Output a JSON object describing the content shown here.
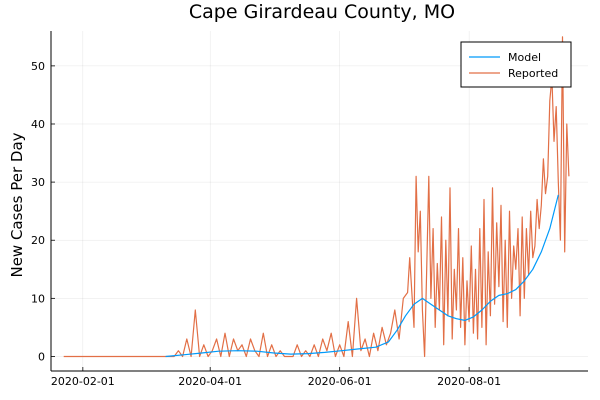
{
  "chart_data": {
    "type": "line",
    "title": "Cape Girardeau County, MO",
    "xlabel": "",
    "ylabel": "New Cases Per Day",
    "x_type": "date",
    "xlim": [
      "2020-01-17",
      "2020-09-26"
    ],
    "ylim": [
      -2.5,
      56
    ],
    "x_ticks": [
      "2020-02-01",
      "2020-04-01",
      "2020-06-01",
      "2020-08-01"
    ],
    "y_ticks": [
      0,
      10,
      20,
      30,
      40,
      50
    ],
    "grid": true,
    "legend": "top-right",
    "series": [
      {
        "name": "Model",
        "color": "#009AFA",
        "points": [
          [
            "2020-03-11",
            0
          ],
          [
            "2020-03-20",
            0.3
          ],
          [
            "2020-03-28",
            0.6
          ],
          [
            "2020-04-05",
            0.9
          ],
          [
            "2020-04-14",
            1.0
          ],
          [
            "2020-04-23",
            0.9
          ],
          [
            "2020-05-01",
            0.6
          ],
          [
            "2020-05-09",
            0.4
          ],
          [
            "2020-05-17",
            0.5
          ],
          [
            "2020-05-25",
            0.7
          ],
          [
            "2020-06-02",
            1.0
          ],
          [
            "2020-06-10",
            1.3
          ],
          [
            "2020-06-18",
            1.6
          ],
          [
            "2020-06-24",
            2.5
          ],
          [
            "2020-06-28",
            4.5
          ],
          [
            "2020-07-02",
            7.0
          ],
          [
            "2020-07-06",
            9.0
          ],
          [
            "2020-07-10",
            10.0
          ],
          [
            "2020-07-14",
            9.0
          ],
          [
            "2020-07-18",
            8.0
          ],
          [
            "2020-07-22",
            7.0
          ],
          [
            "2020-07-26",
            6.5
          ],
          [
            "2020-07-30",
            6.2
          ],
          [
            "2020-08-03",
            6.8
          ],
          [
            "2020-08-07",
            8.0
          ],
          [
            "2020-08-11",
            9.5
          ],
          [
            "2020-08-15",
            10.5
          ],
          [
            "2020-08-19",
            10.8
          ],
          [
            "2020-08-23",
            11.5
          ],
          [
            "2020-08-27",
            13.0
          ],
          [
            "2020-08-31",
            15.0
          ],
          [
            "2020-09-04",
            18.0
          ],
          [
            "2020-09-08",
            22.0
          ],
          [
            "2020-09-12",
            27.8
          ]
        ]
      },
      {
        "name": "Reported",
        "color": "#E26F46",
        "points": [
          [
            "2020-01-23",
            0
          ],
          [
            "2020-03-15",
            0
          ],
          [
            "2020-03-17",
            1
          ],
          [
            "2020-03-19",
            0
          ],
          [
            "2020-03-21",
            3
          ],
          [
            "2020-03-23",
            0
          ],
          [
            "2020-03-25",
            8
          ],
          [
            "2020-03-27",
            0
          ],
          [
            "2020-03-29",
            2
          ],
          [
            "2020-03-31",
            0
          ],
          [
            "2020-04-02",
            1
          ],
          [
            "2020-04-04",
            3
          ],
          [
            "2020-04-06",
            0
          ],
          [
            "2020-04-08",
            4
          ],
          [
            "2020-04-10",
            0
          ],
          [
            "2020-04-12",
            3
          ],
          [
            "2020-04-14",
            1
          ],
          [
            "2020-04-16",
            2
          ],
          [
            "2020-04-18",
            0
          ],
          [
            "2020-04-20",
            3
          ],
          [
            "2020-04-22",
            1
          ],
          [
            "2020-04-24",
            0
          ],
          [
            "2020-04-26",
            4
          ],
          [
            "2020-04-28",
            0
          ],
          [
            "2020-04-30",
            2
          ],
          [
            "2020-05-02",
            0
          ],
          [
            "2020-05-04",
            1
          ],
          [
            "2020-05-06",
            0
          ],
          [
            "2020-05-10",
            0
          ],
          [
            "2020-05-12",
            2
          ],
          [
            "2020-05-14",
            0
          ],
          [
            "2020-05-16",
            1
          ],
          [
            "2020-05-18",
            0
          ],
          [
            "2020-05-20",
            2
          ],
          [
            "2020-05-22",
            0
          ],
          [
            "2020-05-24",
            3
          ],
          [
            "2020-05-26",
            1
          ],
          [
            "2020-05-28",
            4
          ],
          [
            "2020-05-30",
            0
          ],
          [
            "2020-06-01",
            2
          ],
          [
            "2020-06-03",
            0
          ],
          [
            "2020-06-05",
            6
          ],
          [
            "2020-06-07",
            0
          ],
          [
            "2020-06-09",
            10
          ],
          [
            "2020-06-11",
            1
          ],
          [
            "2020-06-13",
            3
          ],
          [
            "2020-06-15",
            0
          ],
          [
            "2020-06-17",
            4
          ],
          [
            "2020-06-19",
            1
          ],
          [
            "2020-06-21",
            5
          ],
          [
            "2020-06-23",
            2
          ],
          [
            "2020-06-25",
            4
          ],
          [
            "2020-06-27",
            8
          ],
          [
            "2020-06-29",
            3
          ],
          [
            "2020-07-01",
            10
          ],
          [
            "2020-07-03",
            11
          ],
          [
            "2020-07-04",
            17
          ],
          [
            "2020-07-06",
            5
          ],
          [
            "2020-07-07",
            31
          ],
          [
            "2020-07-08",
            18
          ],
          [
            "2020-07-09",
            25
          ],
          [
            "2020-07-10",
            8
          ],
          [
            "2020-07-11",
            0
          ],
          [
            "2020-07-12",
            15
          ],
          [
            "2020-07-13",
            31
          ],
          [
            "2020-07-14",
            10
          ],
          [
            "2020-07-15",
            22
          ],
          [
            "2020-07-16",
            5
          ],
          [
            "2020-07-17",
            16
          ],
          [
            "2020-07-18",
            8
          ],
          [
            "2020-07-19",
            24
          ],
          [
            "2020-07-20",
            2
          ],
          [
            "2020-07-21",
            20
          ],
          [
            "2020-07-22",
            7
          ],
          [
            "2020-07-23",
            29
          ],
          [
            "2020-07-24",
            3
          ],
          [
            "2020-07-25",
            15
          ],
          [
            "2020-07-26",
            8
          ],
          [
            "2020-07-27",
            22
          ],
          [
            "2020-07-28",
            5
          ],
          [
            "2020-07-29",
            17
          ],
          [
            "2020-07-30",
            2
          ],
          [
            "2020-07-31",
            13
          ],
          [
            "2020-08-01",
            6
          ],
          [
            "2020-08-02",
            19
          ],
          [
            "2020-08-03",
            4
          ],
          [
            "2020-08-04",
            15
          ],
          [
            "2020-08-05",
            3
          ],
          [
            "2020-08-06",
            22
          ],
          [
            "2020-08-07",
            5
          ],
          [
            "2020-08-08",
            27
          ],
          [
            "2020-08-09",
            2
          ],
          [
            "2020-08-10",
            18
          ],
          [
            "2020-08-11",
            7
          ],
          [
            "2020-08-12",
            29
          ],
          [
            "2020-08-13",
            9
          ],
          [
            "2020-08-14",
            23
          ],
          [
            "2020-08-15",
            12
          ],
          [
            "2020-08-16",
            26
          ],
          [
            "2020-08-17",
            6
          ],
          [
            "2020-08-18",
            20
          ],
          [
            "2020-08-19",
            5
          ],
          [
            "2020-08-20",
            25
          ],
          [
            "2020-08-21",
            10
          ],
          [
            "2020-08-22",
            19
          ],
          [
            "2020-08-23",
            15
          ],
          [
            "2020-08-24",
            22
          ],
          [
            "2020-08-25",
            7
          ],
          [
            "2020-08-26",
            24
          ],
          [
            "2020-08-27",
            10
          ],
          [
            "2020-08-28",
            22
          ],
          [
            "2020-08-29",
            14
          ],
          [
            "2020-08-30",
            25
          ],
          [
            "2020-08-31",
            17
          ],
          [
            "2020-09-01",
            19
          ],
          [
            "2020-09-02",
            27
          ],
          [
            "2020-09-03",
            22
          ],
          [
            "2020-09-04",
            26
          ],
          [
            "2020-09-05",
            34
          ],
          [
            "2020-09-06",
            28
          ],
          [
            "2020-09-07",
            31
          ],
          [
            "2020-09-08",
            44
          ],
          [
            "2020-09-09",
            48
          ],
          [
            "2020-09-10",
            37
          ],
          [
            "2020-09-11",
            43
          ],
          [
            "2020-09-12",
            30
          ],
          [
            "2020-09-13",
            20
          ],
          [
            "2020-09-14",
            55
          ],
          [
            "2020-09-15",
            18
          ],
          [
            "2020-09-16",
            40
          ],
          [
            "2020-09-17",
            31
          ]
        ]
      }
    ]
  }
}
